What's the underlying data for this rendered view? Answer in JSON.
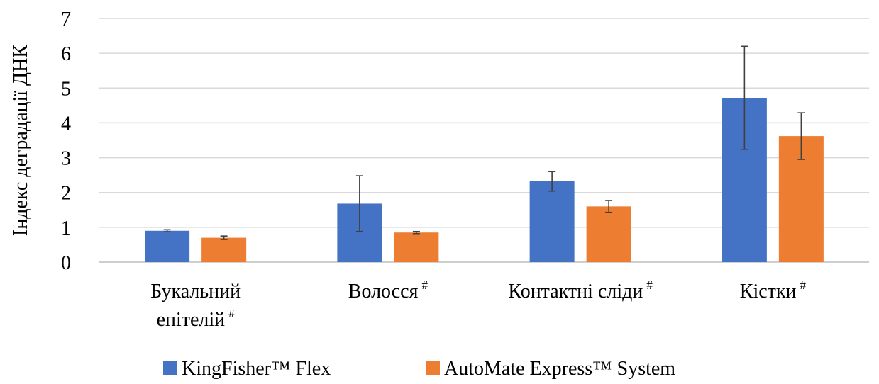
{
  "chart_data": {
    "type": "bar",
    "ylabel": "Індекс деградації ДНК",
    "ylim": [
      0,
      7
    ],
    "yticks": [
      0,
      1,
      2,
      3,
      4,
      5,
      6,
      7
    ],
    "grid": true,
    "legend_position": "bottom",
    "categories": [
      {
        "lines": [
          "Букальний",
          "епітелій"
        ],
        "sup": "#"
      },
      {
        "lines": [
          "Волосся"
        ],
        "sup": "#"
      },
      {
        "lines": [
          "Контактні сліди"
        ],
        "sup": "#"
      },
      {
        "lines": [
          "Кістки"
        ],
        "sup": "#"
      }
    ],
    "series": [
      {
        "name": "KingFisher™ Flex",
        "color": "#4472c4",
        "values": [
          0.9,
          1.68,
          2.32,
          4.72
        ],
        "errors": [
          0.03,
          0.8,
          0.28,
          1.48
        ]
      },
      {
        "name": "AutoMate Express™ System",
        "color": "#ed7d31",
        "values": [
          0.7,
          0.85,
          1.6,
          3.62
        ],
        "errors": [
          0.05,
          0.03,
          0.17,
          0.67
        ]
      }
    ]
  }
}
